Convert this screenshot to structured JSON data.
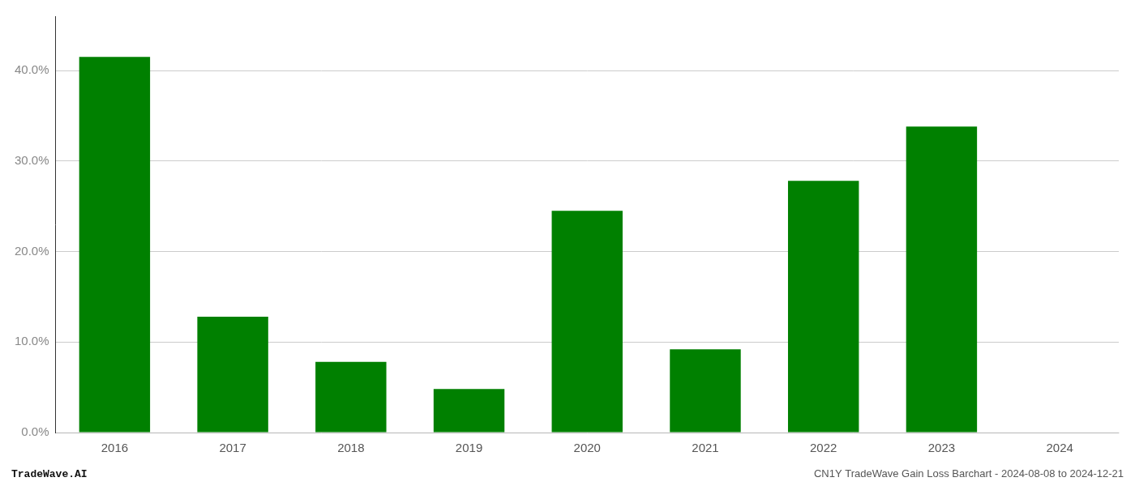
{
  "chart_data": {
    "type": "bar",
    "title": "CN1Y TradeWave Gain Loss Barchart - 2024-08-08 to 2024-12-21",
    "annotations": [
      "TradeWave.AI"
    ],
    "categories": [
      "2016",
      "2017",
      "2018",
      "2019",
      "2020",
      "2021",
      "2022",
      "2023",
      "2024"
    ],
    "values": [
      0.415,
      0.128,
      0.078,
      0.048,
      0.245,
      0.092,
      0.278,
      0.338,
      0.0
    ],
    "color": "#008000",
    "ylim": [
      0,
      0.46
    ],
    "yticks": [
      {
        "value": 0,
        "label": "0.0%"
      },
      {
        "value": 0.1,
        "label": "10.0%"
      },
      {
        "value": 0.2,
        "label": "20.0%"
      },
      {
        "value": 0.3,
        "label": "30.0%"
      },
      {
        "value": 0.4,
        "label": "40.0%"
      }
    ],
    "grid": true
  }
}
